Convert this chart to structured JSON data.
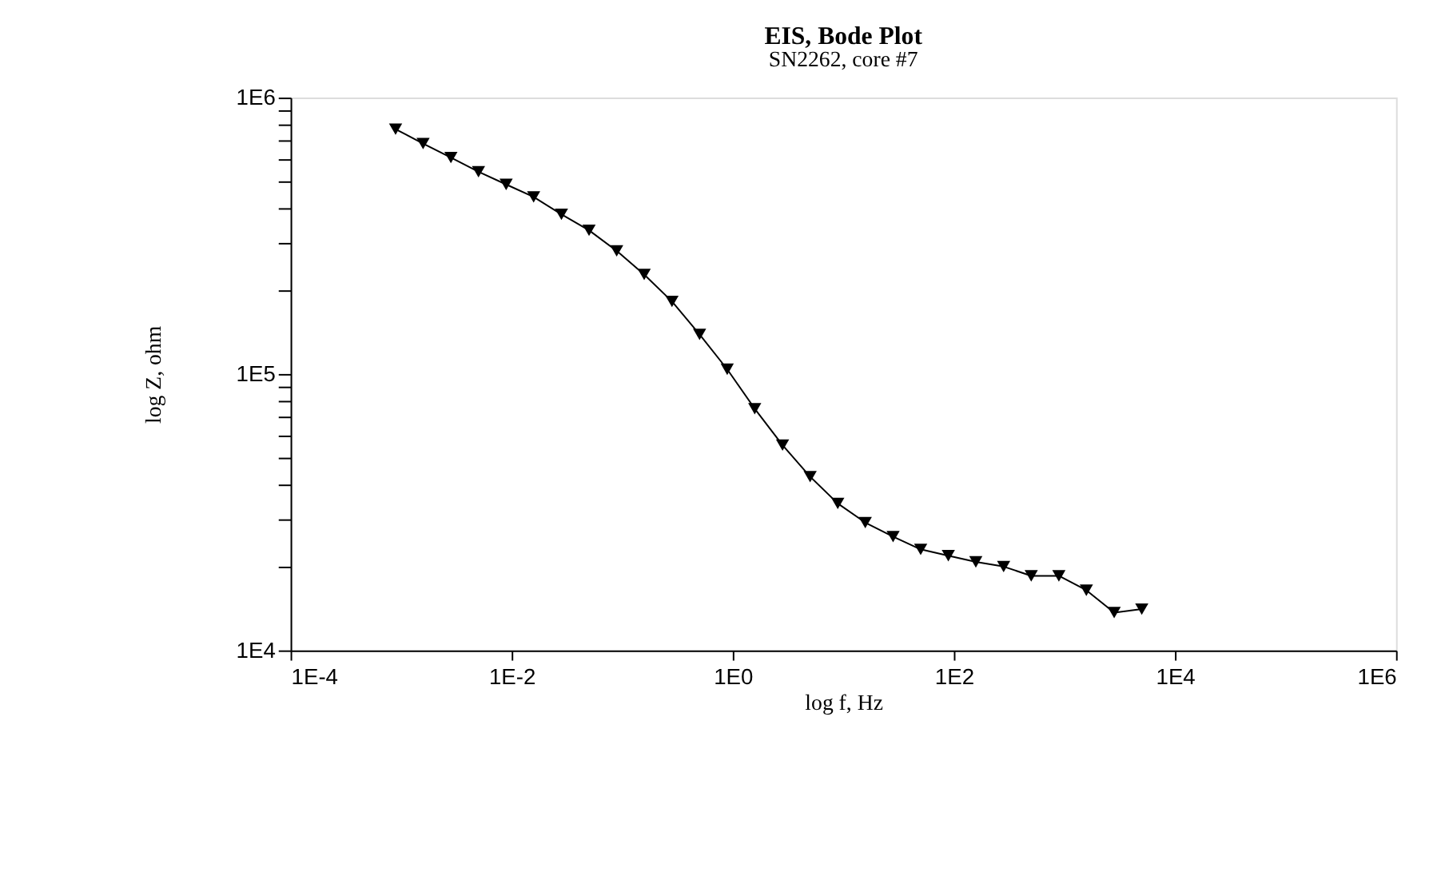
{
  "chart_data": {
    "type": "line",
    "title": "EIS, Bode Plot",
    "subtitle": "SN2262, core #7",
    "xlabel": "log f, Hz",
    "ylabel": "log Z, ohm",
    "x": [
      0.000891,
      0.00158,
      0.00282,
      0.00501,
      0.00891,
      0.0158,
      0.0282,
      0.0501,
      0.0891,
      0.158,
      0.282,
      0.501,
      0.891,
      1.58,
      2.82,
      5.01,
      8.91,
      15.8,
      28.2,
      50.1,
      89.1,
      158,
      282,
      501,
      891,
      1580,
      2820,
      5010
    ],
    "series": [
      {
        "color": "#000000",
        "values": [
          769000,
          682000,
          607000,
          539000,
          485000,
          437000,
          378000,
          331000,
          279000,
          229000,
          183000,
          139000,
          104000,
          74900,
          55300,
          42500,
          34000,
          29000,
          25800,
          23200,
          22000,
          20900,
          20100,
          18600,
          18600,
          16500,
          13700,
          14100
        ]
      }
    ],
    "log": "xy",
    "xlim": [
      0.0001,
      1000000
    ],
    "ylim": [
      10000,
      1000000
    ],
    "xticks": [
      {
        "value": 0.0001,
        "label": "1E-4"
      },
      {
        "value": 0.01,
        "label": "1E-2"
      },
      {
        "value": 1,
        "label": "1E0"
      },
      {
        "value": 100,
        "label": "1E2"
      },
      {
        "value": 10000,
        "label": "1E4"
      },
      {
        "value": 1000000,
        "label": "1E6"
      }
    ],
    "yticks": [
      {
        "value": 10000,
        "label": "1E4"
      },
      {
        "value": 20000,
        "label": null
      },
      {
        "value": 30000,
        "label": null
      },
      {
        "value": 40000,
        "label": null
      },
      {
        "value": 50000,
        "label": null
      },
      {
        "value": 60000,
        "label": null
      },
      {
        "value": 70000,
        "label": null
      },
      {
        "value": 80000,
        "label": null
      },
      {
        "value": 90000,
        "label": null
      },
      {
        "value": 100000,
        "label": "1E5"
      },
      {
        "value": 200000,
        "label": null
      },
      {
        "value": 300000,
        "label": null
      },
      {
        "value": 400000,
        "label": null
      },
      {
        "value": 500000,
        "label": null
      },
      {
        "value": 600000,
        "label": null
      },
      {
        "value": 700000,
        "label": null
      },
      {
        "value": 800000,
        "label": null
      },
      {
        "value": 900000,
        "label": null
      },
      {
        "value": 1000000,
        "label": "1E6"
      }
    ],
    "grid": false,
    "legend": false,
    "marker": "triangle",
    "line_style": "solid"
  }
}
